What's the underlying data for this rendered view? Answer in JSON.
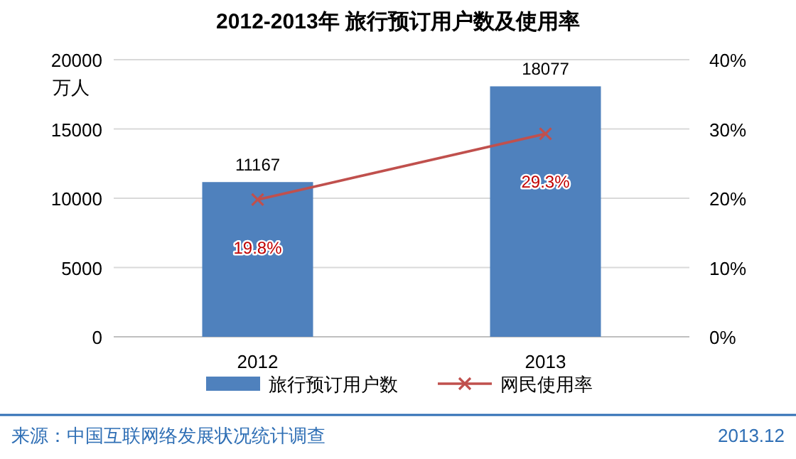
{
  "chart_data": {
    "type": "bar",
    "title": "2012-2013年 旅行预订用户数及使用率",
    "ylabel": "万人",
    "categories": [
      "2012",
      "2013"
    ],
    "series": [
      {
        "name": "旅行预订用户数",
        "color": "#4f81bd",
        "values": [
          11167,
          18077
        ],
        "value_labels": [
          "11167",
          "18077"
        ]
      },
      {
        "name": "网民使用率",
        "type": "line",
        "axis": "y2",
        "color": "#c0504d",
        "marker": "cross",
        "values": [
          19.8,
          29.3
        ],
        "value_labels": [
          "19.8%",
          "29.3%"
        ]
      }
    ],
    "ylim": [
      0,
      20000
    ],
    "yticks": [
      0,
      5000,
      10000,
      15000,
      20000
    ],
    "y2lim": [
      0,
      40
    ],
    "y2ticks": [
      {
        "value": 0,
        "label": "0%"
      },
      {
        "value": 10,
        "label": "10%"
      },
      {
        "value": 20,
        "label": "20%"
      },
      {
        "value": 30,
        "label": "30%"
      },
      {
        "value": 40,
        "label": "40%"
      }
    ],
    "grid": "y",
    "legend": "bottom",
    "annotations": [
      "来源：中国互联网络发展状况统计调查",
      "2013.12"
    ]
  }
}
